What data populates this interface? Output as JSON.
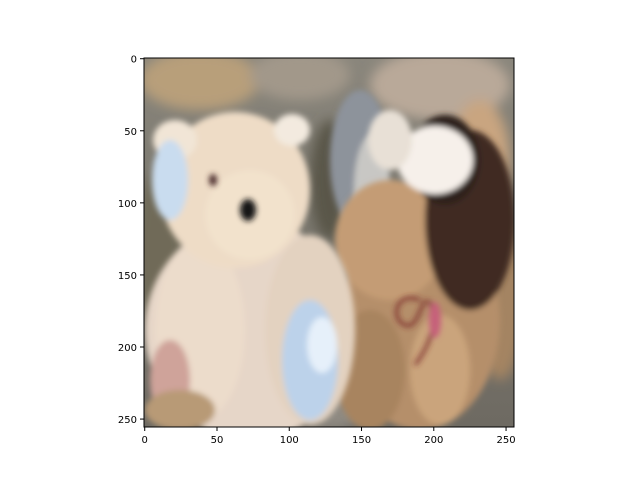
{
  "figure": {
    "type": "image-plot",
    "image_content": "blurred photo of two plush teddy bears: a cream bear with a black nose and light-blue patch on the left, and a tan-and-dark-brown bear with a reddish ribbon on the right, against a grey cluttered background",
    "xlim": [
      0,
      256
    ],
    "ylim_inverted": [
      256,
      0
    ],
    "x_ticks": [
      "0",
      "50",
      "100",
      "150",
      "200",
      "250"
    ],
    "y_ticks": [
      "0",
      "50",
      "100",
      "150",
      "200",
      "250"
    ]
  },
  "colors": {
    "background_top": "#7d7a72",
    "bear_left": "#eedcc6",
    "bear_left_shadow": "#d9c3a6",
    "bear_right": "#b58f6a",
    "bear_right_dark": "#3f2c22",
    "blue_patch": "#bcd2ea",
    "ribbon": "#7a2b2b",
    "axis": "#000000"
  }
}
